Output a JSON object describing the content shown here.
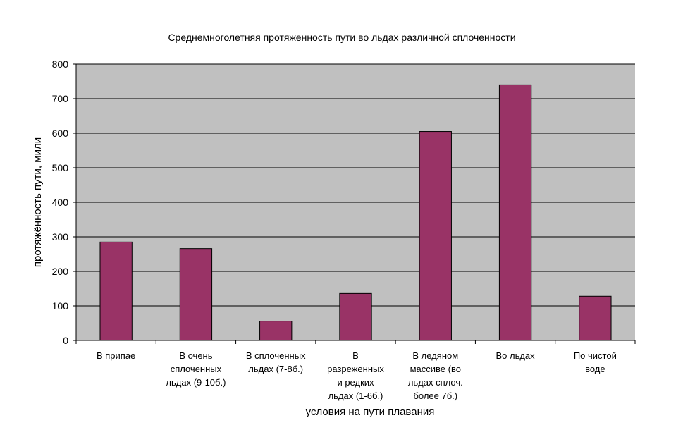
{
  "chart_data": {
    "type": "bar",
    "title": "Среднемноголетняя протяженность пути во льдах различной сплоченности",
    "xlabel": "условия на пути плавания",
    "ylabel": "протяжённость пути, мили",
    "categories": [
      "В припае",
      "В очень\nсплоченных\nльдах (9-10б.)",
      "В сплоченных\nльдах (7-8б.)",
      "В\nразреженных\nи редких\nльдах (1-6б.)",
      "В ледяном\nмассиве (во\nльдах сплоч.\nболее 7б.)",
      "Во льдах",
      "По чистой\nводе"
    ],
    "values": [
      285,
      266,
      56,
      136,
      605,
      740,
      128
    ],
    "ylim": [
      0,
      800
    ],
    "yticks": [
      0,
      100,
      200,
      300,
      400,
      500,
      600,
      700,
      800
    ],
    "grid": true,
    "legend": "none"
  },
  "colors": {
    "bar": "#993366",
    "plot_background": "#c0c0c0",
    "gridline": "#000000"
  }
}
